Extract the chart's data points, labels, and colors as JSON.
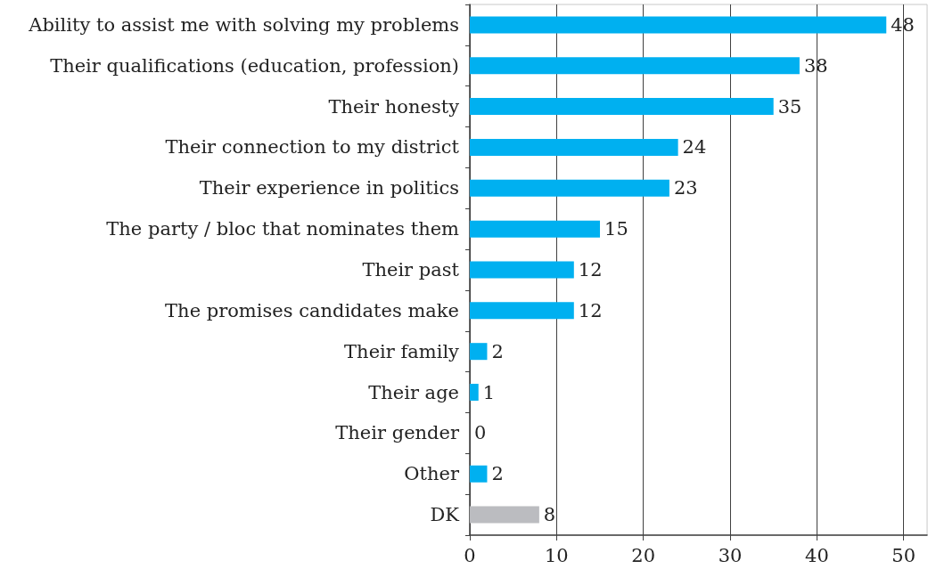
{
  "chart_data": {
    "type": "bar",
    "orientation": "horizontal",
    "categories": [
      "Ability to assist me with solving my problems",
      "Their qualifications (education, profession)",
      "Their honesty",
      "Their connection to my district",
      "Their experience in politics",
      "The party / bloc that nominates them",
      "Their past",
      "The promises candidates make",
      "Their family",
      "Their age",
      "Their gender",
      "Other",
      "DK"
    ],
    "values": [
      48,
      38,
      35,
      24,
      23,
      15,
      12,
      12,
      2,
      1,
      0,
      2,
      8
    ],
    "colors": [
      "#00b0f0",
      "#00b0f0",
      "#00b0f0",
      "#00b0f0",
      "#00b0f0",
      "#00b0f0",
      "#00b0f0",
      "#00b0f0",
      "#00b0f0",
      "#00b0f0",
      "#00b0f0",
      "#00b0f0",
      "#bbbcc0"
    ],
    "xlim": [
      0,
      52.7
    ],
    "xticks": [
      0,
      10,
      20,
      30,
      40,
      50
    ],
    "grid": "x",
    "data_labels": true
  }
}
